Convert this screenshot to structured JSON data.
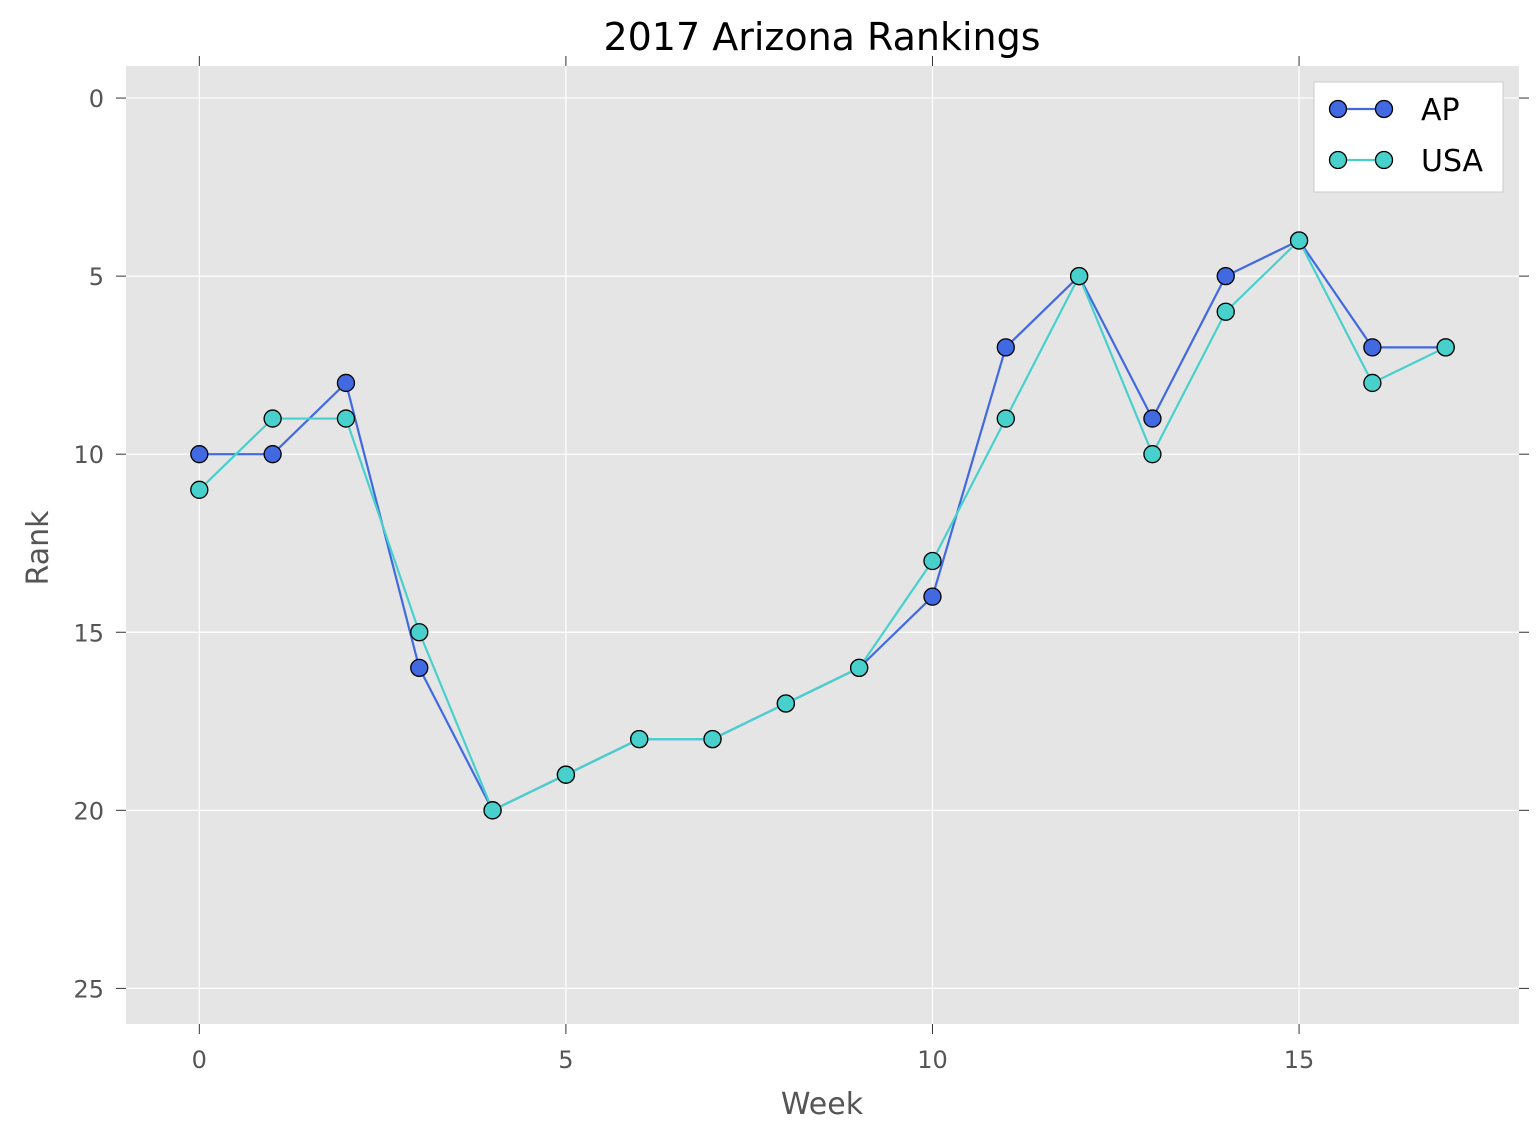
{
  "chart_data": {
    "type": "line",
    "title": "2017 Arizona Rankings",
    "xlabel": "Week",
    "ylabel": "Rank",
    "xlim": [
      -1,
      18
    ],
    "ylim": [
      26,
      -0.9
    ],
    "y_inverted": true,
    "xticks": [
      0,
      5,
      10,
      15
    ],
    "yticks": [
      0,
      5,
      10,
      15,
      20,
      25
    ],
    "grid": true,
    "legend_position": "top-right",
    "x": [
      0,
      1,
      2,
      3,
      4,
      5,
      6,
      7,
      8,
      9,
      10,
      11,
      12,
      13,
      14,
      15,
      16,
      17
    ],
    "series": [
      {
        "name": "AP",
        "color": "#4169e1",
        "values": [
          10,
          10,
          8,
          16,
          20,
          19,
          18,
          18,
          17,
          16,
          14,
          7,
          5,
          9,
          5,
          4,
          7,
          7
        ]
      },
      {
        "name": "USA",
        "color": "#48d1cc",
        "values": [
          11,
          9,
          9,
          15,
          20,
          19,
          18,
          18,
          17,
          16,
          13,
          9,
          5,
          10,
          6,
          4,
          8,
          7
        ]
      }
    ]
  },
  "colors": {
    "plot_background": "#e5e5e5",
    "grid": "#ffffff",
    "text": "#555555",
    "marker_edge": "#000000"
  }
}
